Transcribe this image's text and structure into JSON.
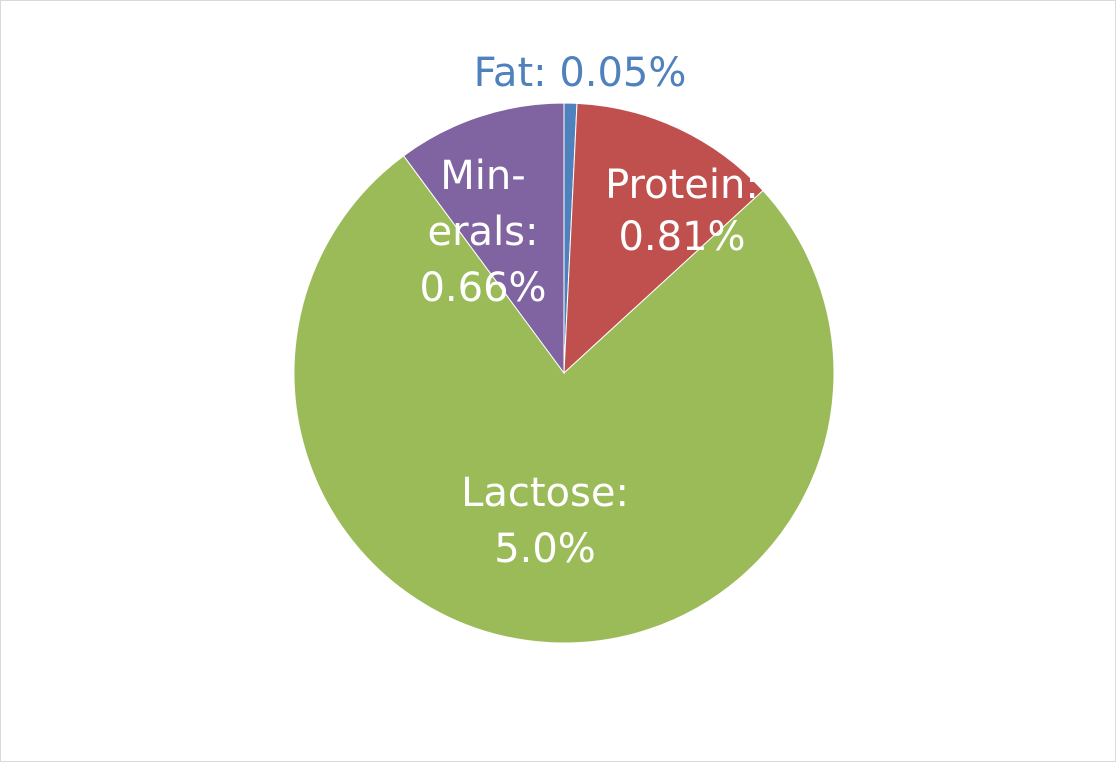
{
  "chart_data": {
    "type": "pie",
    "title": "",
    "slices": [
      {
        "name": "Fat",
        "value": 0.05,
        "label": "Fat: 0.05%",
        "label_lines": [
          "Fat: 0.05%"
        ],
        "color": "#4F81BD",
        "label_color": "#4F81BD",
        "label_outside": true
      },
      {
        "name": "Protein",
        "value": 0.81,
        "label": "Protein: 0.81%",
        "label_lines": [
          "Protein:",
          "0.81%"
        ],
        "color": "#C0504D",
        "label_color": "#ffffff",
        "label_outside": false
      },
      {
        "name": "Lactose",
        "value": 5.0,
        "label": "Lactose: 5.0%",
        "label_lines": [
          "Lactose:",
          "5.0%"
        ],
        "color": "#9BBB59",
        "label_color": "#ffffff",
        "label_outside": false
      },
      {
        "name": "Minerals",
        "value": 0.66,
        "label": "Min-erals: 0.66%",
        "label_lines": [
          "Min-",
          "erals:",
          "0.66%"
        ],
        "color": "#8064A2",
        "label_color": "#ffffff",
        "label_outside": false
      }
    ],
    "start_angle_deg": 0,
    "direction": "clockwise",
    "legend": "none"
  }
}
